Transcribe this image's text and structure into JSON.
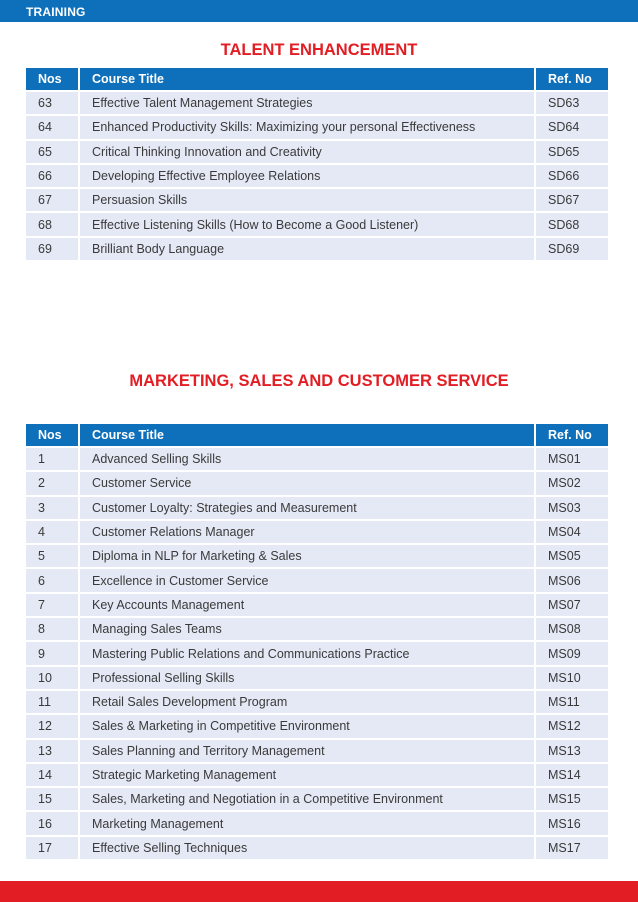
{
  "header": {
    "label": "TRAINING"
  },
  "colors": {
    "blue": "#0e6fba",
    "red": "#e21d24",
    "row": "#e4e9f5"
  },
  "talent": {
    "title": "TALENT ENHANCEMENT",
    "columns": {
      "nos": "Nos",
      "title": "Course Title",
      "ref": "Ref. No"
    },
    "rows": [
      {
        "nos": "63",
        "title": "Effective Talent Management Strategies",
        "ref": "SD63"
      },
      {
        "nos": "64",
        "title": "Enhanced Productivity Skills: Maximizing your personal Effectiveness",
        "ref": "SD64"
      },
      {
        "nos": "65",
        "title": "Critical Thinking Innovation and Creativity",
        "ref": "SD65"
      },
      {
        "nos": "66",
        "title": "Developing Effective Employee Relations",
        "ref": "SD66"
      },
      {
        "nos": "67",
        "title": "Persuasion Skills",
        "ref": "SD67"
      },
      {
        "nos": "68",
        "title": "Effective Listening Skills (How to Become a Good Listener)",
        "ref": "SD68"
      },
      {
        "nos": "69",
        "title": "Brilliant Body Language",
        "ref": "SD69"
      }
    ]
  },
  "marketing": {
    "title": "MARKETING, SALES AND CUSTOMER SERVICE",
    "columns": {
      "nos": "Nos",
      "title": "Course Title",
      "ref": "Ref. No"
    },
    "rows": [
      {
        "nos": "1",
        "title": "Advanced Selling Skills",
        "ref": "MS01"
      },
      {
        "nos": "2",
        "title": " Customer Service",
        "ref": "MS02"
      },
      {
        "nos": "3",
        "title": "Customer Loyalty: Strategies and Measurement",
        "ref": "MS03"
      },
      {
        "nos": "4",
        "title": "Customer Relations Manager",
        "ref": "MS04"
      },
      {
        "nos": "5",
        "title": "Diploma in NLP for Marketing & Sales",
        "ref": "MS05"
      },
      {
        "nos": "6",
        "title": "Excellence in Customer Service",
        "ref": "MS06"
      },
      {
        "nos": "7",
        "title": "Key Accounts Management",
        "ref": "MS07"
      },
      {
        "nos": "8",
        "title": "Managing Sales Teams",
        "ref": "MS08"
      },
      {
        "nos": "9",
        "title": "Mastering Public Relations and Communications Practice",
        "ref": "MS09"
      },
      {
        "nos": "10",
        "title": "Professional Selling Skills",
        "ref": "MS10"
      },
      {
        "nos": "11",
        "title": "Retail Sales Development Program",
        "ref": "MS11"
      },
      {
        "nos": "12",
        "title": "Sales & Marketing in Competitive Environment",
        "ref": "MS12"
      },
      {
        "nos": "13",
        "title": "Sales Planning and Territory Management",
        "ref": "MS13"
      },
      {
        "nos": "14",
        "title": "Strategic Marketing Management",
        "ref": "MS14"
      },
      {
        "nos": "15",
        "title": "Sales, Marketing and Negotiation in a Competitive Environment",
        "ref": "MS15"
      },
      {
        "nos": "16",
        "title": "Marketing Management",
        "ref": "MS16"
      },
      {
        "nos": "17",
        "title": "Effective Selling Techniques",
        "ref": "MS17"
      }
    ]
  }
}
